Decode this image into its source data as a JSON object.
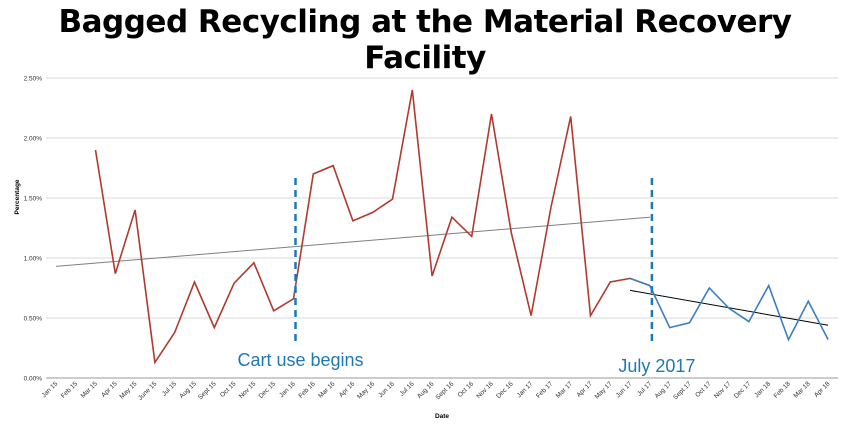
{
  "chart_data": {
    "type": "line",
    "title": "Bagged Recycling at the Material Recovery Facility",
    "xlabel": "Date",
    "ylabel": "Percentage",
    "ylim": [
      0,
      0.025
    ],
    "yticks": [
      "0.00%",
      "0.50%",
      "1.00%",
      "1.50%",
      "2.00%",
      "2.50%"
    ],
    "grid": true,
    "categories": [
      "Jan 15",
      "Feb 15",
      "Mar 15",
      "Apr 15",
      "May 15",
      "June 15",
      "Jul 15",
      "Aug 15",
      "Sept 15",
      "Oct 15",
      "Nov 15",
      "Dec 15",
      "Jan 16",
      "Feb 16",
      "Mar 16",
      "Apr 16",
      "May 16",
      "Jun 16",
      "Jul 16",
      "Aug 16",
      "Sept 16",
      "Oct 16",
      "Nov 16",
      "Dec 16",
      "Jan 17",
      "Feb 17",
      "Mar 17",
      "Apr 17",
      "May 17",
      "Jun 17",
      "Jul 17",
      "Aug 17",
      "Sept 17",
      "Oct 17",
      "Nov 17",
      "Dec 17",
      "Jan 18",
      "Feb 18",
      "Mar 18",
      "Apr 18"
    ],
    "series": [
      {
        "color": "#b03a2e",
        "values": [
          null,
          null,
          0.019,
          0.0087,
          0.014,
          0.0013,
          0.0038,
          0.008,
          0.0042,
          0.0079,
          0.0096,
          0.0056,
          0.0066,
          0.017,
          0.0177,
          0.0131,
          0.0138,
          0.0149,
          0.024,
          0.0085,
          0.0134,
          0.0118,
          0.022,
          0.0121,
          0.0052,
          0.0142,
          0.0218,
          0.0052,
          0.008,
          0.0083,
          0.0077,
          null,
          null,
          null,
          null,
          null,
          null,
          null,
          null,
          null
        ]
      },
      {
        "color": "#3c7fc0",
        "values": [
          null,
          null,
          null,
          null,
          null,
          null,
          null,
          null,
          null,
          null,
          null,
          null,
          null,
          null,
          null,
          null,
          null,
          null,
          null,
          null,
          null,
          null,
          null,
          null,
          null,
          null,
          null,
          null,
          null,
          0.0083,
          0.0077,
          0.0042,
          0.0046,
          0.0075,
          0.0058,
          0.0047,
          0.0077,
          0.0032,
          0.0064,
          0.0032
        ]
      }
    ],
    "trendlines": [
      {
        "color": "#7f7f7f",
        "from": {
          "x": "Jan 15",
          "y": 0.0093
        },
        "to": {
          "x": "Jul 17",
          "y": 0.0134
        }
      },
      {
        "color": "#000000",
        "from": {
          "x": "Jun 17",
          "y": 0.0073
        },
        "to": {
          "x": "Apr 18",
          "y": 0.0044
        }
      }
    ],
    "markers": [
      {
        "x": "Jan 16",
        "label": "Cart use begins",
        "color": "#1f78b4"
      },
      {
        "x": "Jul 17",
        "label": "July 2017",
        "color": "#1f78b4"
      }
    ]
  }
}
